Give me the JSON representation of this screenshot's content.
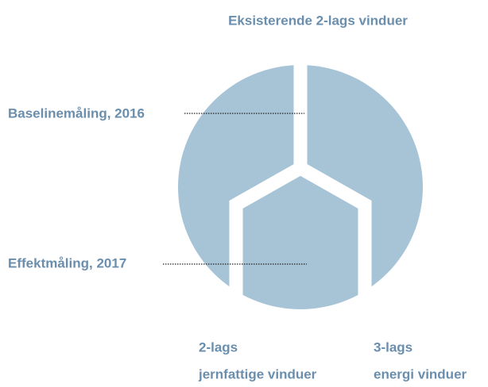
{
  "title": "Eksisterende 2-lags vinduer",
  "callouts": [
    {
      "label": "Baselinemåling, 2016"
    },
    {
      "label": "Effektmåling, 2017"
    }
  ],
  "segments": [
    {
      "lines": [
        "2-lags",
        "jernfattige vinduer"
      ]
    },
    {
      "lines": [
        "3-lags",
        "energi vinduer"
      ]
    }
  ]
}
